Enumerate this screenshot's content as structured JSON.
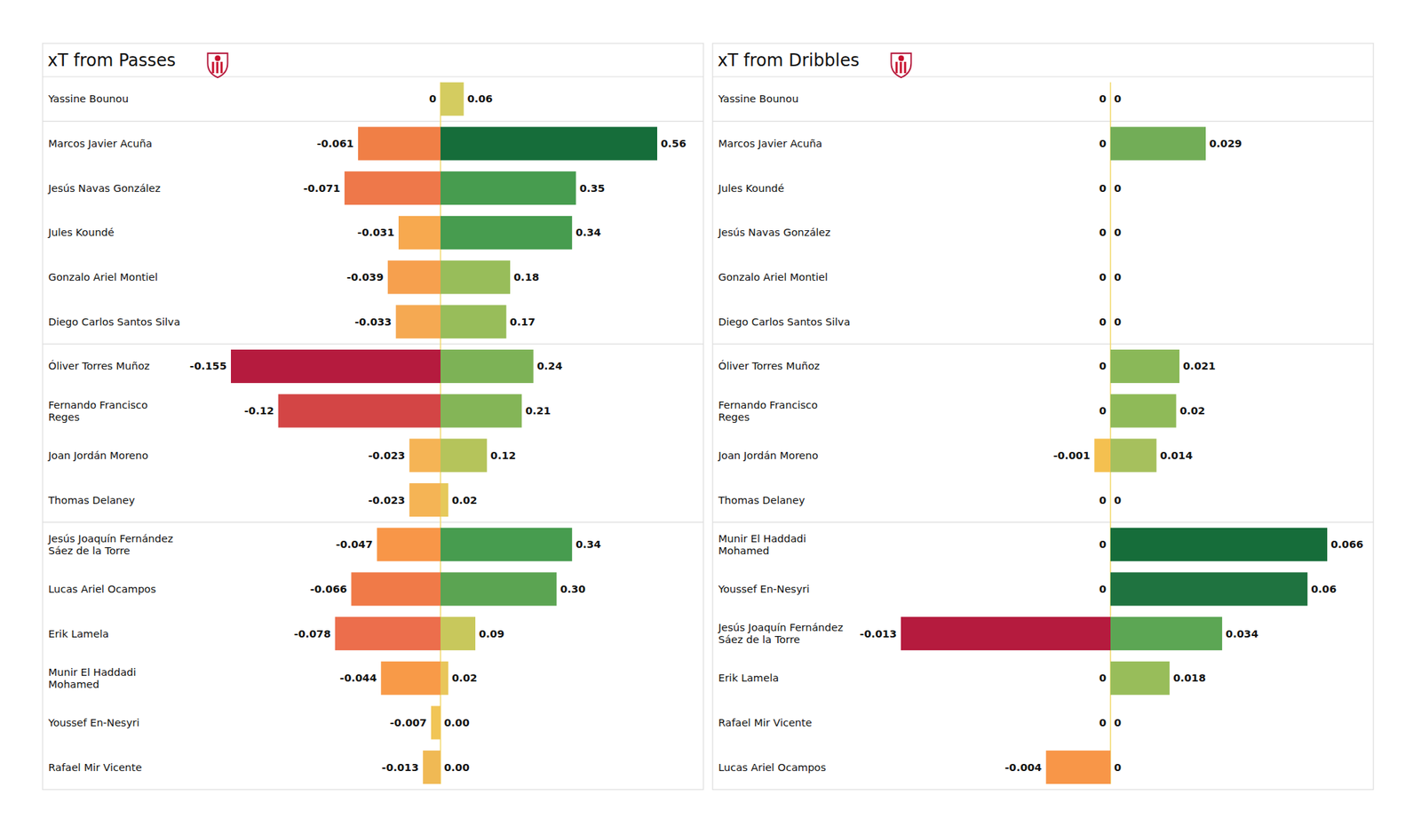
{
  "chart_data": [
    {
      "type": "bar",
      "title": "xT from Passes",
      "orientation": "horizontal",
      "data_labels": true,
      "tick_labels": false,
      "categories": [
        "Yassine Bounou",
        "Marcos Javier Acuña",
        "Jesús Navas González",
        "Jules Koundé",
        "Gonzalo Ariel Montiel",
        "Diego Carlos Santos Silva",
        "Óliver Torres Muñoz",
        "Fernando Francisco\nReges",
        "Joan Jordán Moreno",
        "Thomas Delaney",
        "Jesús Joaquín Fernández\nSáez de la Torre",
        "Lucas Ariel Ocampos",
        "Erik Lamela",
        "Munir El Haddadi\nMohamed",
        "Youssef En-Nesyri",
        "Rafael Mir Vicente"
      ],
      "series": [
        {
          "values": [
            0,
            -0.061,
            -0.071,
            -0.031,
            -0.039,
            -0.033,
            -0.155,
            -0.12,
            -0.023,
            -0.023,
            -0.047,
            -0.066,
            -0.078,
            -0.044,
            -0.007,
            -0.013
          ],
          "colors": [
            "#d4cc60",
            "#f07f46",
            "#ee784a",
            "#f7a94f",
            "#f6a04e",
            "#f5a952",
            "#b51b3e",
            "#d34545",
            "#f5b455",
            "#f5b455",
            "#f89648",
            "#f07a48",
            "#ec6e4c",
            "#f89a48",
            "#f1c556",
            "#f0b954"
          ]
        },
        {
          "values": [
            0.06,
            0.56,
            0.35,
            0.34,
            0.18,
            0.17,
            0.24,
            0.21,
            0.12,
            0.02,
            0.34,
            0.3,
            0.09,
            0.02,
            0,
            0
          ],
          "value_labels": [
            "0.06",
            "0.56",
            "0.35",
            "0.34",
            "0.18",
            "0.17",
            "0.24",
            "0.21",
            "0.12",
            "0.02",
            "0.34",
            "0.30",
            "0.09",
            "0.02",
            "0.00",
            "0.00"
          ],
          "colors": [
            "#d4cc60",
            "#166d3a",
            "#479c4f",
            "#479c4f",
            "#98bd5a",
            "#98bd5a",
            "#7db256",
            "#84b557",
            "#b5c45b",
            "#e6c95a",
            "#479c4f",
            "#5ba452",
            "#c8c85c",
            "#e9c65a",
            "#f2c85a",
            "#f2c85a"
          ]
        }
      ]
    },
    {
      "type": "bar",
      "title": "xT from Dribbles",
      "orientation": "horizontal",
      "data_labels": true,
      "tick_labels": false,
      "categories": [
        "Yassine Bounou",
        "Marcos Javier Acuña",
        "Jules Koundé",
        "Jesús Navas González",
        "Gonzalo Ariel Montiel",
        "Diego Carlos Santos Silva",
        "Óliver Torres Muñoz",
        "Fernando Francisco\nReges",
        "Joan Jordán Moreno",
        "Thomas Delaney",
        "Munir El Haddadi\nMohamed",
        "Youssef En-Nesyri",
        "Jesús Joaquín Fernández\nSáez de la Torre",
        "Erik Lamela",
        "Rafael Mir Vicente",
        "Lucas Ariel Ocampos"
      ],
      "series": [
        {
          "values": [
            0,
            0,
            0,
            0,
            0,
            0,
            0,
            0,
            -0.001,
            0,
            0,
            0,
            -0.013,
            0,
            0,
            -0.004
          ],
          "colors": [
            "#f2d96a",
            "#f2d96a",
            "#f2d96a",
            "#f2d96a",
            "#f2d96a",
            "#f2d96a",
            "#f2d96a",
            "#f2d96a",
            "#f4c050",
            "#f2d96a",
            "#f2d96a",
            "#f2d96a",
            "#b51b3e",
            "#f2d96a",
            "#f2d96a",
            "#f89648"
          ]
        },
        {
          "values": [
            0,
            0.029,
            0,
            0,
            0,
            0,
            0.021,
            0.02,
            0.014,
            0,
            0.066,
            0.06,
            0.034,
            0.018,
            0,
            0
          ],
          "colors": [
            "#f2d96a",
            "#72ad57",
            "#f2d96a",
            "#f2d96a",
            "#f2d96a",
            "#f2d96a",
            "#8ab858",
            "#8fba58",
            "#a6c05d",
            "#f2d96a",
            "#166d3a",
            "#1f7340",
            "#5ca654",
            "#98bd5a",
            "#f2d96a",
            "#f2d96a"
          ]
        }
      ]
    }
  ]
}
